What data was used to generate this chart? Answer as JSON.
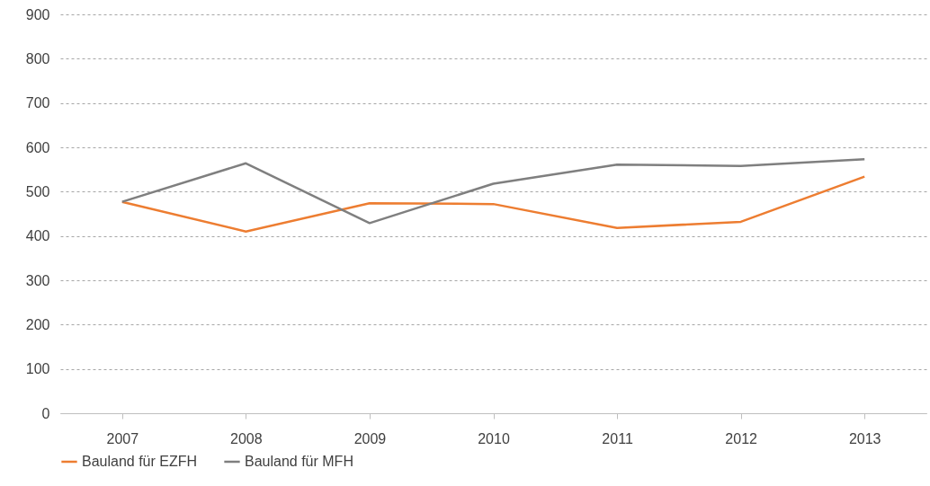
{
  "chart_data": {
    "type": "line",
    "categories": [
      "2007",
      "2008",
      "2009",
      "2010",
      "2011",
      "2012",
      "2013"
    ],
    "series": [
      {
        "name": "Bauland für EZFH",
        "color": "#ed7d31",
        "values": [
          477,
          410,
          474,
          472,
          418,
          432,
          534
        ]
      },
      {
        "name": "Bauland für MFH",
        "color": "#7f7f7f",
        "values": [
          477,
          564,
          429,
          518,
          561,
          558,
          573
        ]
      }
    ],
    "ylim": [
      0,
      900
    ],
    "yticks": [
      0,
      100,
      200,
      300,
      400,
      500,
      600,
      700,
      800,
      900
    ],
    "grid": "y",
    "legend": "bottom",
    "marker": "none",
    "line_style": "solid"
  }
}
